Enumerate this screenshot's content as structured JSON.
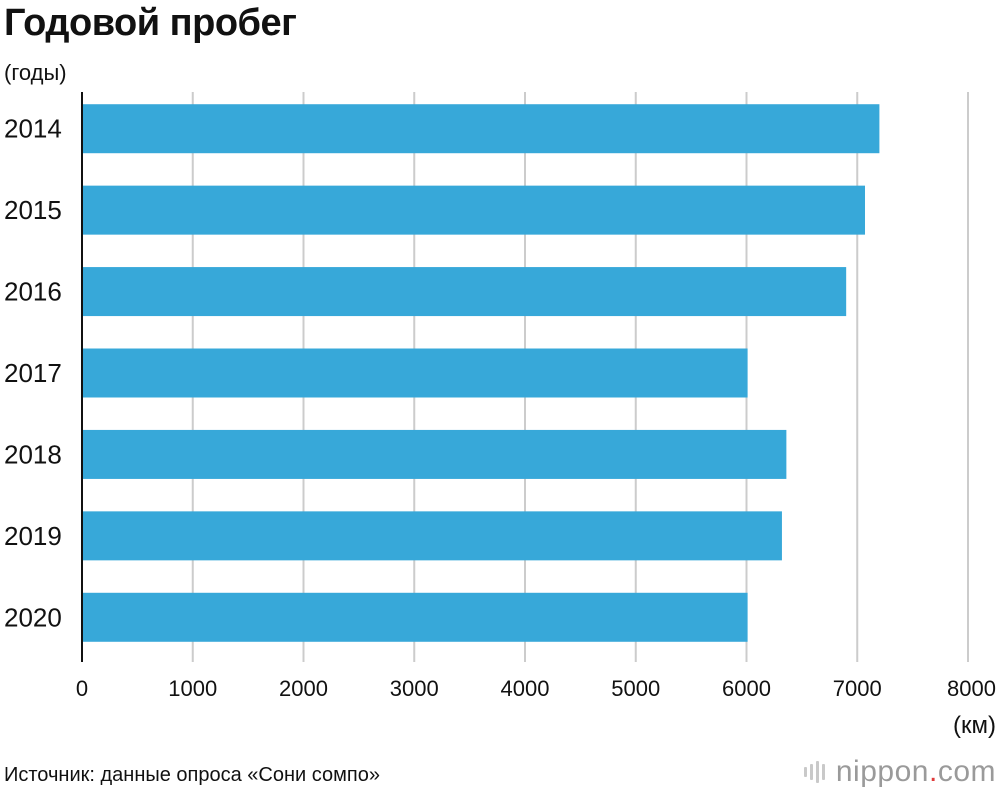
{
  "chart_data": {
    "type": "bar",
    "orientation": "horizontal",
    "title": "Годовой пробег",
    "ylabel": "(годы)",
    "xlabel": "(км)",
    "categories": [
      "2014",
      "2015",
      "2016",
      "2017",
      "2018",
      "2019",
      "2020"
    ],
    "values": [
      7200,
      7070,
      6900,
      6010,
      6360,
      6320,
      6010
    ],
    "xlim": [
      0,
      8000
    ],
    "xticks": [
      "0",
      "1000",
      "2000",
      "3000",
      "4000",
      "5000",
      "6000",
      "7000",
      "8000"
    ],
    "grid": true,
    "colors": {
      "bar": "#37a8d9",
      "grid": "#cccccc",
      "axis": "#111111"
    }
  },
  "source": "Источник: данные опроса «Сони сомпо»",
  "brand": {
    "name": "nippon",
    "dot": ".",
    "tld": "com",
    "icon": "nippon-logo-icon"
  }
}
